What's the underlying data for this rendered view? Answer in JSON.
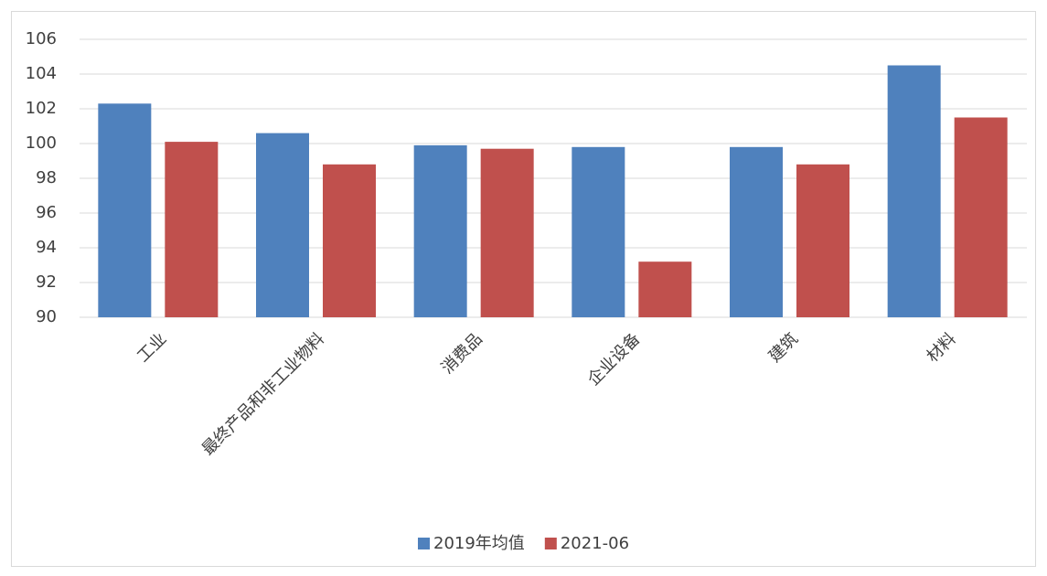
{
  "chart_data": {
    "type": "bar",
    "categories": [
      "工业",
      "最终产品和非工业物料",
      "消费品",
      "企业设备",
      "建筑",
      "材料"
    ],
    "series": [
      {
        "name": "2019年均值",
        "color": "#4f81bd",
        "values": [
          102.3,
          100.6,
          99.9,
          99.8,
          99.8,
          104.5
        ]
      },
      {
        "name": "2021-06",
        "color": "#c0504d",
        "values": [
          100.1,
          98.8,
          99.7,
          93.2,
          98.8,
          101.5
        ]
      }
    ],
    "ylim": [
      90,
      106
    ],
    "yticks": [
      90,
      92,
      94,
      96,
      98,
      100,
      102,
      104,
      106
    ],
    "grid": true,
    "legend": "bottom"
  }
}
